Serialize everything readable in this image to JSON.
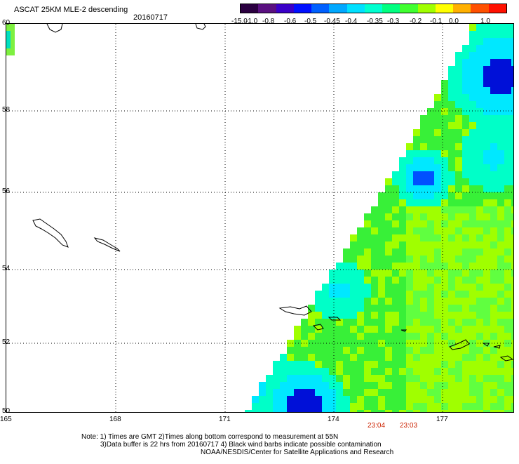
{
  "title": "ASCAT 25KM MLE-2 descending",
  "date": "20160717",
  "colorbar": {
    "labels": [
      "-15.0",
      "-1.0",
      "-0.8",
      "-0.6",
      "-0.5",
      "-0.45",
      "-0.4",
      "-0.35",
      "-0.3",
      "-0.2",
      "-0.1",
      "0.0",
      "1.0"
    ],
    "colors": [
      "#2b0040",
      "#5a1080",
      "#3a00c8",
      "#0010ff",
      "#0060ff",
      "#00a8ff",
      "#00e0ff",
      "#00ffd0",
      "#00ff80",
      "#40ff30",
      "#a0ff00",
      "#ffff00",
      "#ffb000",
      "#ff5000",
      "#ff1000"
    ]
  },
  "map": {
    "lat_labels": [
      "60",
      "58",
      "56",
      "54",
      "52",
      "50"
    ],
    "lon_labels": [
      "165",
      "168",
      "171",
      "174",
      "177"
    ],
    "time_labels": [
      "23:04",
      "23:03"
    ],
    "lat_range": [
      50,
      60
    ],
    "lon_range": [
      165,
      179
    ]
  },
  "notes": [
    "Note: 1) Times are GMT 2)Times along bottom correspond to measurement at 55N",
    "3)Data buffer is 22 hrs from 20160717 4) Black wind barbs indicate possible contamination",
    "NOAA/NESDIS/Center for Satellite Applications and Research"
  ]
}
